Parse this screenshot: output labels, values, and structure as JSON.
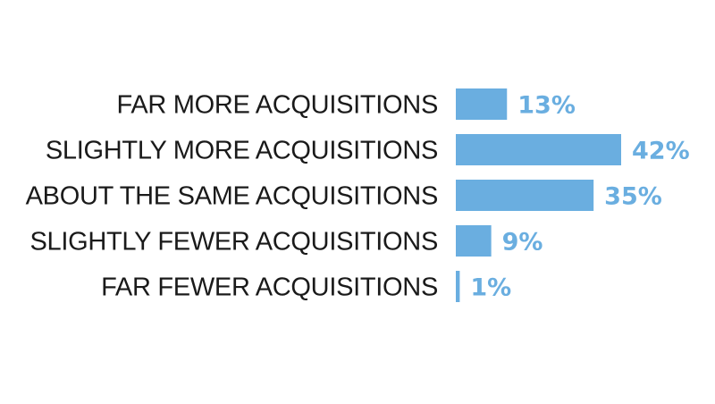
{
  "chart_data": {
    "type": "bar",
    "orientation": "horizontal",
    "categories": [
      "FAR MORE ACQUISITIONS",
      "SLIGHTLY MORE ACQUISITIONS",
      "ABOUT THE SAME ACQUISITIONS",
      "SLIGHTLY FEWER ACQUISITIONS",
      "FAR FEWER ACQUISITIONS"
    ],
    "values": [
      13,
      42,
      35,
      9,
      1
    ],
    "value_labels": [
      "13%",
      "42%",
      "35%",
      "9%",
      "1%"
    ],
    "title": "",
    "xlabel": "",
    "ylabel": "",
    "xlim": [
      0,
      42
    ],
    "grid": false,
    "legend": "none",
    "bar_color": "#6aaee0"
  }
}
